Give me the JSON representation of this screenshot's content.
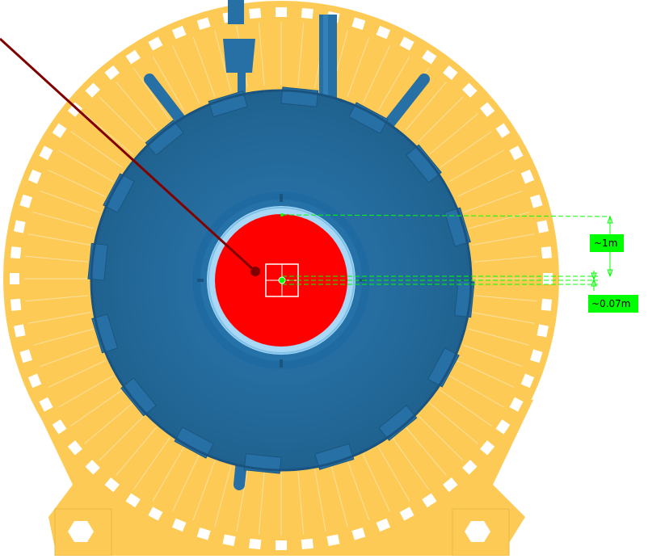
{
  "viewer": {
    "colors": {
      "background": "#ffffff",
      "outer_ring": "#fdcb55",
      "vessel": "#2670a5",
      "vessel_dark": "#1d5d8e",
      "inner_ring": "#a8d8f6",
      "core": "#ff0000",
      "pointer": "#800000",
      "dimension": "#00ff00",
      "dimension_label_bg": "#00ff00"
    },
    "icons": {
      "pointer": "pointer-line-icon",
      "center_marker": "center-crosshair-icon",
      "arrow": "dimension-arrow-icon"
    }
  },
  "dimensions": [
    {
      "label": "~1m"
    },
    {
      "label": "~0.07m"
    }
  ]
}
